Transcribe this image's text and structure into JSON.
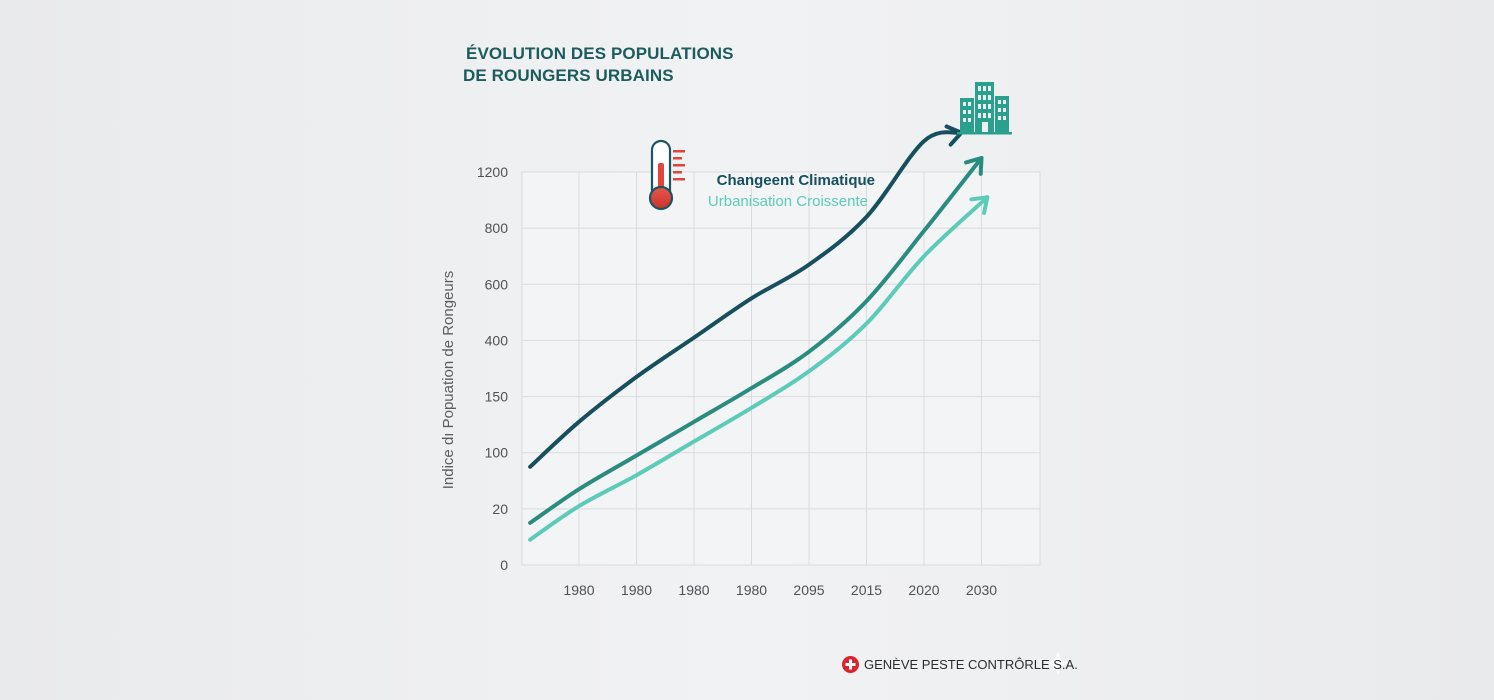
{
  "chart_data": {
    "type": "line",
    "title": "ÉVOLUTION DES POPULATIONS DE ROUNGERS URBAINS",
    "title_lines": [
      "ÉVOLUTION DES POPULATIONS",
      "DE ROUNGERS URBAINS"
    ],
    "ylabel": "Indice dı Popuation de Rongeurs",
    "xlabel": "",
    "y_ticks": [
      "1200",
      "800",
      "600",
      "400",
      "150",
      "100",
      "20",
      "0"
    ],
    "x_ticks": [
      "1980",
      "1980",
      "1980",
      "1980",
      "2095",
      "2015",
      "2020",
      "2030"
    ],
    "grid": true,
    "note": "Y-axis tick labels are non-linear (printed as shown); values are given in tick-index units (0 = bottom tick '0', 7 = top tick '1200'); x values in category-index units (0 = first tick).",
    "series": [
      {
        "name": "Changeent Climatique",
        "color": "#164f5e",
        "arrow": true,
        "x": [
          -0.85,
          0,
          1,
          2,
          3,
          4,
          5,
          6,
          6.65
        ],
        "y": [
          1.75,
          2.55,
          3.35,
          4.05,
          4.75,
          5.35,
          6.2,
          7.55,
          7.7
        ]
      },
      {
        "name": "",
        "color": "#2a8c7e",
        "arrow": true,
        "x": [
          -0.85,
          0,
          1,
          2,
          3,
          4,
          5,
          6,
          7
        ],
        "y": [
          0.75,
          1.35,
          1.95,
          2.55,
          3.15,
          3.8,
          4.7,
          5.95,
          7.25
        ]
      },
      {
        "name": "Urbanisation Croissente",
        "color": "#5ccbb8",
        "arrow": true,
        "x": [
          -0.85,
          0,
          1,
          2,
          3,
          4,
          5,
          6,
          7.1
        ],
        "y": [
          0.45,
          1.05,
          1.6,
          2.2,
          2.8,
          3.45,
          4.3,
          5.5,
          6.55
        ]
      }
    ]
  },
  "icons": {
    "thermometer": "thermometer-icon",
    "buildings": "office-buildings-icon",
    "swiss_cross": "swiss-cross-icon",
    "sparkle": "sparkle-icon"
  },
  "footer": {
    "text": "GENÈVE PESTE CONTRÔRLE S.A."
  },
  "colors": {
    "background": "#eeeff1",
    "title": "#1c5c5c",
    "grid": "#d9dbde",
    "thermometer_red": "#e0443a",
    "buildings_teal": "#2aa08f",
    "swiss_red": "#d7262e"
  }
}
